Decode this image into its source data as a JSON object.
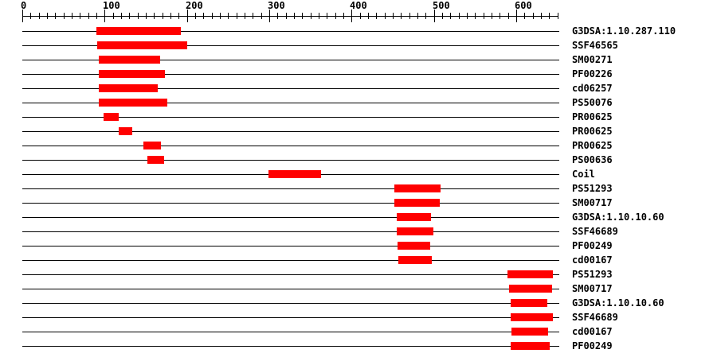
{
  "page": {
    "background_color": "#ffffff",
    "text_color": "#000000"
  },
  "chart_data": {
    "type": "bar",
    "variant": "protein-domain-architecture-intervals",
    "title": "",
    "xlabel": "",
    "ylabel": "",
    "legend": "none",
    "grid": "off",
    "bar_color": "#ff0000",
    "line_color": "#000000",
    "axis": {
      "min": 0,
      "max": 650,
      "minor_tick_step": 10,
      "major_tick_step": 100,
      "major_tick_labels": [
        "0",
        "100",
        "200",
        "300",
        "400",
        "500",
        "600"
      ]
    },
    "rows": [
      {
        "label": "G3DSA:1.10.287.110",
        "start": 90,
        "end": 193
      },
      {
        "label": "SSF46565",
        "start": 91,
        "end": 200
      },
      {
        "label": "SM00271",
        "start": 93,
        "end": 168
      },
      {
        "label": "PF00226",
        "start": 93,
        "end": 173
      },
      {
        "label": "cd06257",
        "start": 93,
        "end": 165
      },
      {
        "label": "PS50076",
        "start": 93,
        "end": 176
      },
      {
        "label": "PR00625",
        "start": 99,
        "end": 117
      },
      {
        "label": "PR00625",
        "start": 117,
        "end": 133
      },
      {
        "label": "PR00625",
        "start": 147,
        "end": 168
      },
      {
        "label": "PS00636",
        "start": 152,
        "end": 172
      },
      {
        "label": "Coil",
        "start": 299,
        "end": 363
      },
      {
        "label": "PS51293",
        "start": 452,
        "end": 508
      },
      {
        "label": "SM00717",
        "start": 452,
        "end": 507
      },
      {
        "label": "G3DSA:1.10.10.60",
        "start": 455,
        "end": 497
      },
      {
        "label": "SSF46689",
        "start": 455,
        "end": 500
      },
      {
        "label": "PF00249",
        "start": 456,
        "end": 496
      },
      {
        "label": "cd00167",
        "start": 457,
        "end": 498
      },
      {
        "label": "PS51293",
        "start": 589,
        "end": 644
      },
      {
        "label": "SM00717",
        "start": 591,
        "end": 643
      },
      {
        "label": "G3DSA:1.10.10.60",
        "start": 593,
        "end": 638
      },
      {
        "label": "SSF46689",
        "start": 593,
        "end": 644
      },
      {
        "label": "cd00167",
        "start": 594,
        "end": 639
      },
      {
        "label": "PF00249",
        "start": 593,
        "end": 640
      }
    ]
  }
}
